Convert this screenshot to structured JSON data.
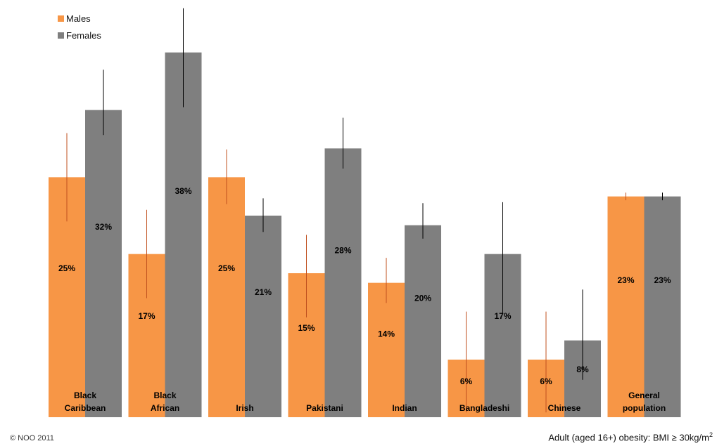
{
  "chart_data": {
    "type": "bar",
    "categories": [
      [
        "Black",
        "Caribbean"
      ],
      [
        "Black",
        "African"
      ],
      [
        "Irish"
      ],
      [
        "Pakistani"
      ],
      [
        "Indian"
      ],
      [
        "Bangladeshi"
      ],
      [
        "Chinese"
      ],
      [
        "General",
        "population"
      ]
    ],
    "series": [
      {
        "name": "Males",
        "color": "#f79646",
        "whisker_color": "#c0501f",
        "values": [
          25,
          17,
          25,
          15,
          14,
          6,
          6,
          23
        ],
        "labels": [
          "25%",
          "17%",
          "25%",
          "15%",
          "14%",
          "6%",
          "6%",
          "23%"
        ],
        "error": [
          [
            20.4,
            29.6
          ],
          [
            12.4,
            21.6
          ],
          [
            22.2,
            27.9
          ],
          [
            10.4,
            19.0
          ],
          [
            11.9,
            16.6
          ],
          [
            0.5,
            11.0
          ],
          [
            0.5,
            11.0
          ],
          [
            22.6,
            23.4
          ]
        ]
      },
      {
        "name": "Females",
        "color": "#7f7f7f",
        "whisker_color": "#000000",
        "values": [
          32,
          38,
          21,
          28,
          20,
          17,
          8,
          23
        ],
        "labels": [
          "32%",
          "38%",
          "21%",
          "28%",
          "20%",
          "17%",
          "8%",
          "23%"
        ],
        "error": [
          [
            29.4,
            36.2
          ],
          [
            32.3,
            42.6
          ],
          [
            19.3,
            22.8
          ],
          [
            25.9,
            31.2
          ],
          [
            18.6,
            22.3
          ],
          [
            10.8,
            22.4
          ],
          [
            3.9,
            13.3
          ],
          [
            22.6,
            23.4
          ]
        ]
      }
    ],
    "ylim": [
      0,
      42
    ],
    "grid": false,
    "legend_position": "top-left"
  },
  "legend": {
    "males": "Males",
    "females": "Females"
  },
  "footer": {
    "copyright": "© NOO 2011",
    "note_prefix": "Adult (aged 16+) obesity: BMI ≥ 30kg/m",
    "note_sup": "2"
  }
}
